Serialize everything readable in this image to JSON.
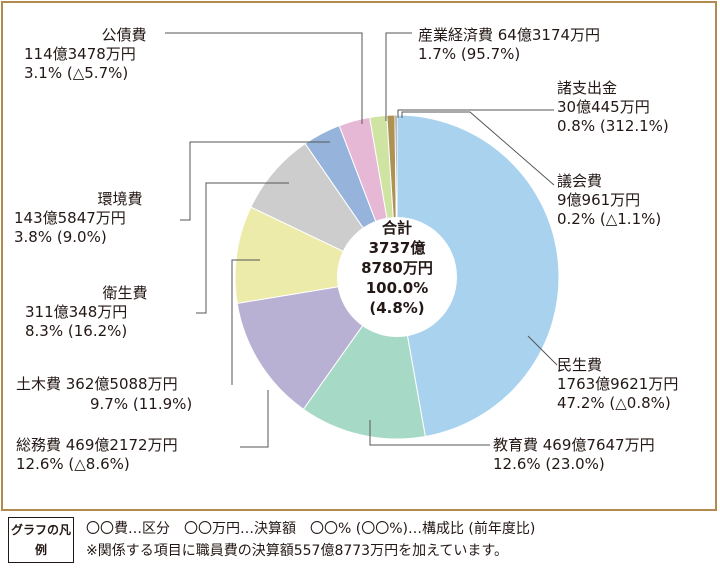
{
  "chart_data": {
    "type": "pie",
    "center_label": [
      "合計",
      "3737億",
      "8780万円",
      "100.0%",
      "(4.8%)"
    ],
    "slices": [
      {
        "name": "民生費",
        "amount": "1763億9621万円",
        "pct": "47.2% (△0.8%)",
        "value": 47.2,
        "color": "#a8d2ee"
      },
      {
        "name": "教育費",
        "amount": "469億7647万円",
        "pct": "12.6% (23.0%)",
        "value": 12.6,
        "color": "#a7dac6"
      },
      {
        "name": "総務費",
        "amount": "469億2172万円",
        "pct": "12.6% (△8.6%)",
        "value": 12.6,
        "color": "#b8b1d4"
      },
      {
        "name": "土木費",
        "amount": "362億5088万円",
        "pct": "9.7% (11.9%)",
        "value": 9.7,
        "color": "#ecebaa"
      },
      {
        "name": "衛生費",
        "amount": "311億348万円",
        "pct": "8.3% (16.2%)",
        "value": 8.3,
        "color": "#cdcdcd"
      },
      {
        "name": "環境費",
        "amount": "143億5847万円",
        "pct": "3.8% (9.0%)",
        "value": 3.8,
        "color": "#96b4db"
      },
      {
        "name": "公債費",
        "amount": "114億3478万円",
        "pct": "3.1% (△5.7%)",
        "value": 3.1,
        "color": "#e6b8d6"
      },
      {
        "name": "産業経済費",
        "amount": "64億3174万円",
        "pct": "1.7% (95.7%)",
        "value": 1.7,
        "color": "#cfe3a2"
      },
      {
        "name": "諸支出金",
        "amount": "30億445万円",
        "pct": "0.8% (312.1%)",
        "value": 0.8,
        "color": "#ad9254"
      },
      {
        "name": "議会費",
        "amount": "9億961万円",
        "pct": "0.2% (△1.1%)",
        "value": 0.2,
        "color": "#7a7a7a"
      }
    ]
  },
  "legend": {
    "title": "グラフの凡例",
    "line1": "〇〇費…区分　〇〇万円…決算額　〇〇% (〇〇%)…構成比 (前年度比)",
    "line2": "※関係する項目に職員費の決算額557億8773万円を加えています。"
  }
}
